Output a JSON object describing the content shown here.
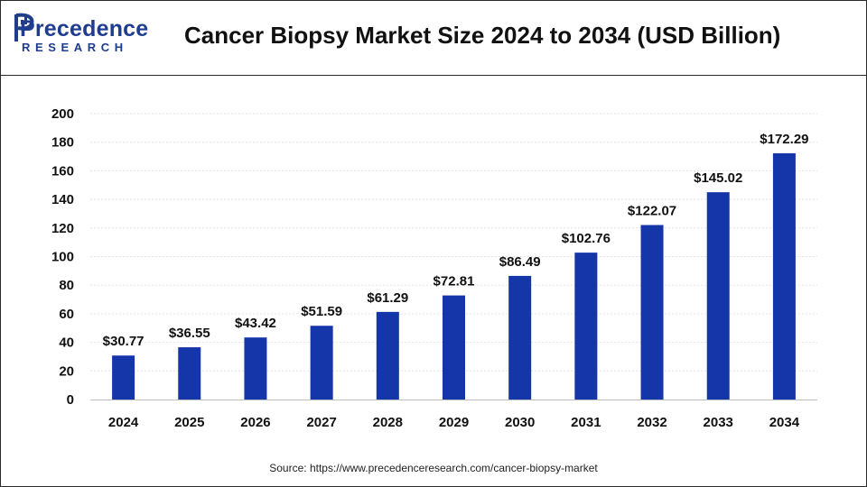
{
  "header": {
    "brand_name": "Precedence",
    "brand_sub": "RESEARCH",
    "title": "Cancer Biopsy Market Size 2024 to 2034 (USD Billion)"
  },
  "footer": {
    "source": "Source: https://www.precedenceresearch.com/cancer-biopsy-market"
  },
  "colors": {
    "bar": "#1436a8",
    "brand": "#1f3c8f"
  },
  "chart_data": {
    "type": "bar",
    "title": "Cancer Biopsy Market Size 2024 to 2034 (USD Billion)",
    "xlabel": "",
    "ylabel": "",
    "categories": [
      "2024",
      "2025",
      "2026",
      "2027",
      "2028",
      "2029",
      "2030",
      "2031",
      "2032",
      "2033",
      "2034"
    ],
    "values": [
      30.77,
      36.55,
      43.42,
      51.59,
      61.29,
      72.81,
      86.49,
      102.76,
      122.07,
      145.02,
      172.29
    ],
    "value_labels": [
      "$30.77",
      "$36.55",
      "$43.42",
      "$51.59",
      "$61.29",
      "$72.81",
      "$86.49",
      "$102.76",
      "$122.07",
      "$145.02",
      "$172.29"
    ],
    "y_ticks": [
      "0",
      "20",
      "40",
      "60",
      "80",
      "100",
      "120",
      "140",
      "160",
      "180",
      "200"
    ],
    "ylim": [
      0,
      200
    ],
    "grid": true,
    "legend": "none"
  }
}
